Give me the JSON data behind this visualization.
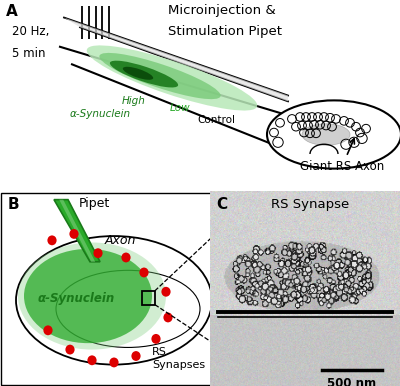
{
  "panel_A": {
    "label": "A",
    "title_line1": "Microinjection &",
    "title_line2": "Stimulation Pipet",
    "freq_text": "20 Hz,\n5 min",
    "axon_label": "Giant RS Axon",
    "alpha_syn_label": "α-Synuclein",
    "high_label": "High",
    "low_label": "Low",
    "control_label": "Control"
  },
  "panel_B": {
    "label": "B",
    "pipet_label": "Pipet",
    "axon_label": "Axon",
    "alpha_syn_label": "α-Synuclein",
    "rs_syn_label": "RS\nSynapses"
  },
  "panel_C": {
    "label": "C",
    "title": "RS Synapse",
    "scalebar_label": "500 nm"
  },
  "colors": {
    "dark_green": "#1a7a1a",
    "mid_green": "#2aaa2a",
    "light_green": "#7dcc7d",
    "very_light_green": "#b8e8b8",
    "red_dot": "#dd0000",
    "black": "#000000",
    "gray": "#888888",
    "light_gray": "#cccccc",
    "bg_white": "#ffffff"
  }
}
